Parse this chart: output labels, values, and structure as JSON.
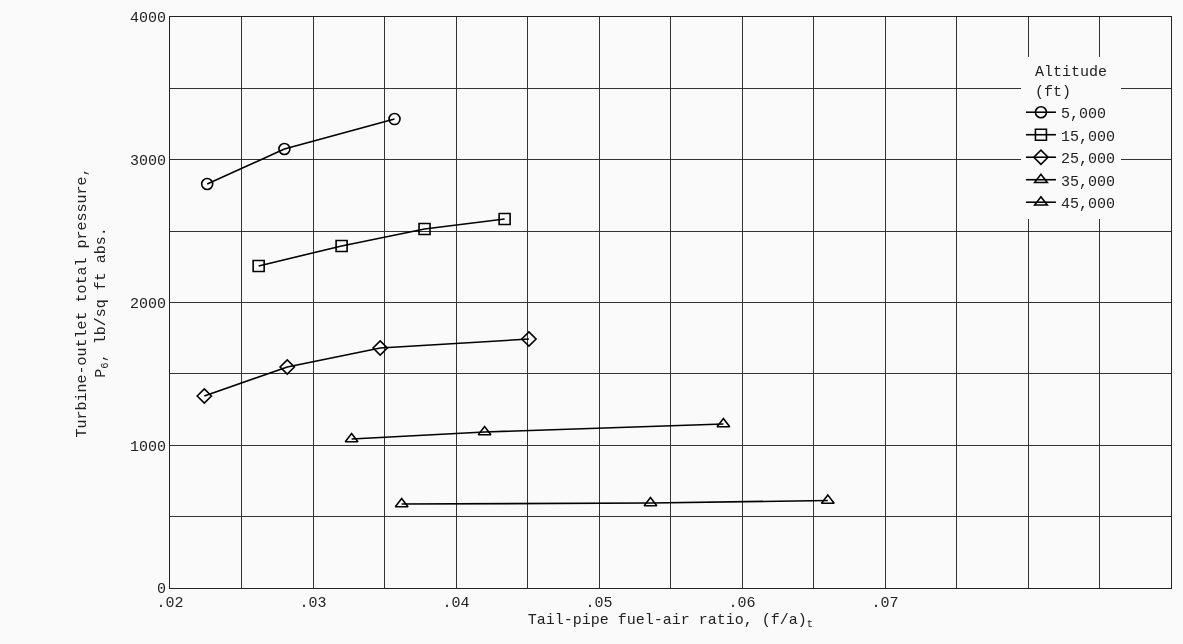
{
  "chart_data": {
    "type": "line",
    "xlabel": "Tail-pipe fuel-air ratio, (f/a)$_{t}$",
    "ylabel": "Turbine-outlet total pressure,\nP$_{6}$, lb/sq ft abs.",
    "legend_title": "Altitude\n(ft)",
    "legend": "top right",
    "grid": true,
    "line_style": "solid",
    "xlim": [
      0.02,
      0.09
    ],
    "xticks": [
      {
        "value": 0.02,
        "label": ".02"
      },
      {
        "value": 0.025,
        "label": null
      },
      {
        "value": 0.03,
        "label": ".03"
      },
      {
        "value": 0.035,
        "label": null
      },
      {
        "value": 0.04,
        "label": ".04"
      },
      {
        "value": 0.045,
        "label": null
      },
      {
        "value": 0.05,
        "label": ".05"
      },
      {
        "value": 0.055,
        "label": null
      },
      {
        "value": 0.06,
        "label": ".06"
      },
      {
        "value": 0.065,
        "label": null
      },
      {
        "value": 0.07,
        "label": ".07"
      },
      {
        "value": 0.075,
        "label": null
      },
      {
        "value": 0.08,
        "label": null
      },
      {
        "value": 0.085,
        "label": null
      },
      {
        "value": 0.09,
        "label": null
      }
    ],
    "ylim": [
      0,
      4000
    ],
    "yticks": [
      0,
      {
        "value": 500,
        "label": null
      },
      1000,
      {
        "value": 1500,
        "label": null
      },
      2000,
      {
        "value": 2500,
        "label": null
      },
      3000,
      {
        "value": 3500,
        "label": null
      },
      4000
    ],
    "series": [
      {
        "name": "5,000",
        "color": "#000000",
        "marker": "circle",
        "x": [
          0.0226,
          0.028,
          0.0357
        ],
        "values": [
          2830,
          3075,
          3285
        ]
      },
      {
        "name": "15,000",
        "color": "#000000",
        "marker": "square",
        "x": [
          0.0262,
          0.032,
          0.0378,
          0.0434
        ],
        "values": [
          2256,
          2396,
          2515,
          2585
        ]
      },
      {
        "name": "25,000",
        "color": "#000000",
        "marker": "diamond",
        "x": [
          0.0224,
          0.0282,
          0.0347,
          0.0451
        ],
        "values": [
          1345,
          1548,
          1681,
          1744
        ]
      },
      {
        "name": "35,000",
        "color": "#000000",
        "marker": "triangle",
        "x": [
          0.0327,
          0.042,
          0.0587
        ],
        "values": [
          1044,
          1093,
          1149
        ]
      },
      {
        "name": "45,000",
        "color": "#000000",
        "marker": "triangle",
        "x": [
          0.0362,
          0.0536,
          0.066
        ],
        "values": [
          588,
          595,
          613
        ]
      }
    ]
  }
}
